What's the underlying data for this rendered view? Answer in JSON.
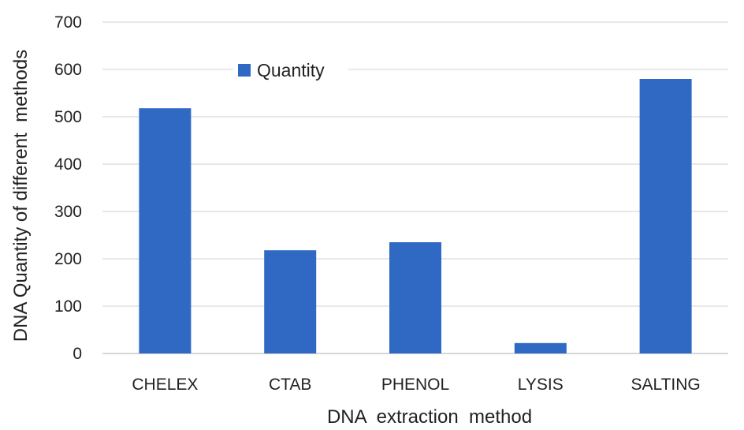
{
  "chart_data": {
    "type": "bar",
    "categories": [
      "CHELEX",
      "CTAB",
      "PHENOL",
      "LYSIS",
      "SALTING"
    ],
    "series": [
      {
        "name": "Quantity",
        "values": [
          518,
          218,
          235,
          22,
          580
        ],
        "color": "#2f69c4"
      }
    ],
    "title": "",
    "xlabel": "DNA  extraction  method",
    "ylabel": "DNA Quantity of different  methods",
    "ylim": [
      0,
      700
    ],
    "yticks": [
      0,
      100,
      200,
      300,
      400,
      500,
      600,
      700
    ],
    "grid": true,
    "legend_position": "top-left"
  }
}
